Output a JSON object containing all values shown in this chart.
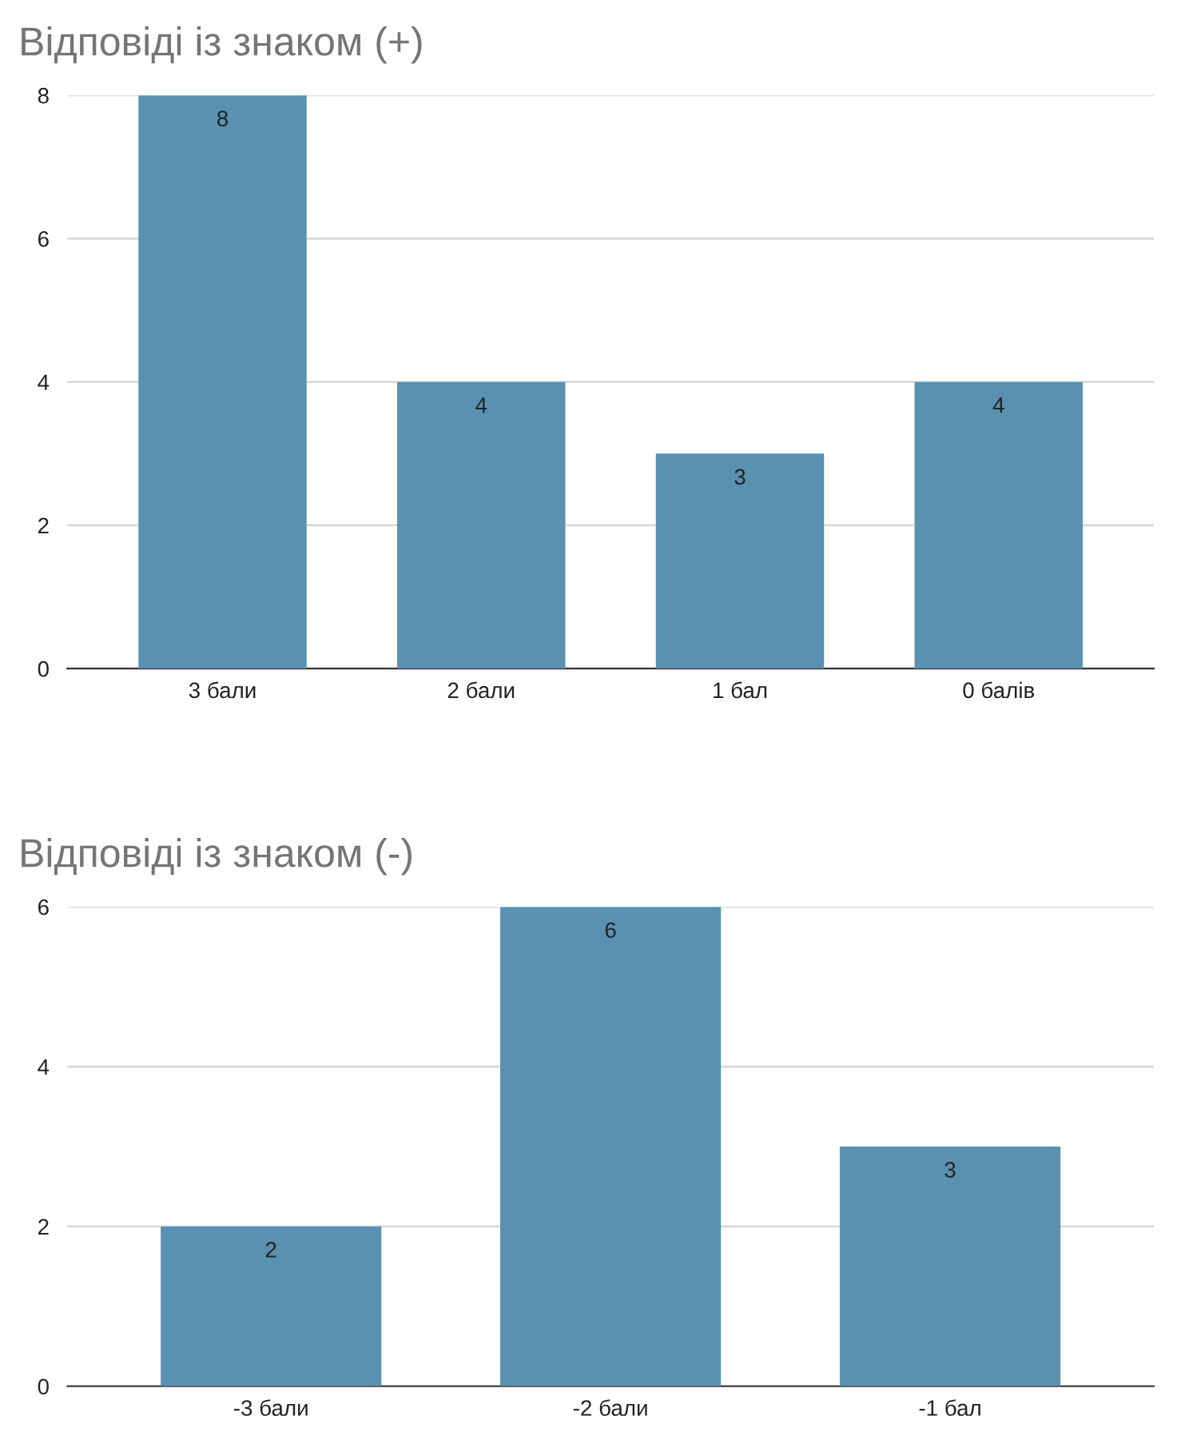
{
  "chart_data": [
    {
      "type": "bar",
      "title": "Відповіді із знаком (+)",
      "categories": [
        "3 бали",
        "2 бали",
        "1 бал",
        "0 балів"
      ],
      "values": [
        8,
        4,
        3,
        4
      ],
      "color": "#5a91b0",
      "ylim": [
        0,
        8
      ],
      "yticks": [
        0,
        2,
        4,
        6,
        8
      ],
      "grid": "y",
      "data_labels": true
    },
    {
      "type": "bar",
      "title": "Відповіді із знаком (-)",
      "categories": [
        "-3 бали",
        "-2 бали",
        "-1 бал"
      ],
      "values": [
        2,
        6,
        3
      ],
      "color": "#5a91b0",
      "ylim": [
        0,
        6
      ],
      "yticks": [
        0,
        2,
        4,
        6
      ],
      "grid": "y",
      "data_labels": true
    }
  ]
}
